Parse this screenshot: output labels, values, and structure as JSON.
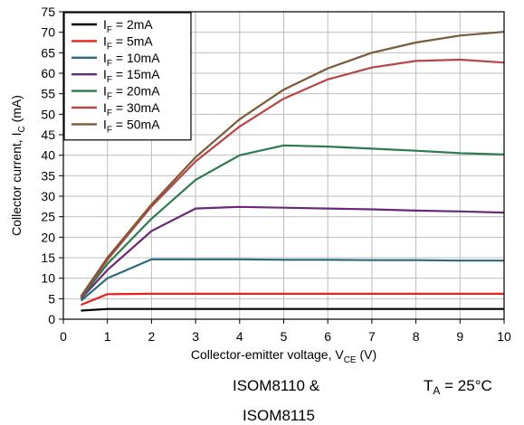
{
  "chart_data": {
    "type": "line",
    "xlabel": {
      "text": "Collector-emitter voltage, V",
      "sub": "CE",
      "suffix": " (V)"
    },
    "ylabel": {
      "text": "Collector current, I",
      "sub": "C",
      "suffix": " (mA)"
    },
    "xlim": [
      0,
      10
    ],
    "ylim": [
      0,
      75
    ],
    "x_ticks": [
      0,
      1,
      2,
      3,
      4,
      5,
      6,
      7,
      8,
      9,
      10
    ],
    "y_ticks": [
      0,
      5,
      10,
      15,
      20,
      25,
      30,
      35,
      40,
      45,
      50,
      55,
      60,
      65,
      70,
      75
    ],
    "grid": true,
    "legend_position": "top-left",
    "x": [
      0.4,
      1,
      2,
      3,
      4,
      5,
      6,
      7,
      8,
      9,
      10
    ],
    "series": [
      {
        "name": "I",
        "sub": "F",
        "label_suffix": " = 2mA",
        "color": "#000000",
        "values": [
          2.1,
          2.5,
          2.5,
          2.5,
          2.5,
          2.5,
          2.5,
          2.5,
          2.5,
          2.5,
          2.5
        ]
      },
      {
        "name": "I",
        "sub": "F",
        "label_suffix": " = 5mA",
        "color": "#e8211d",
        "values": [
          3.5,
          6.1,
          6.2,
          6.2,
          6.2,
          6.2,
          6.2,
          6.2,
          6.2,
          6.2,
          6.2
        ]
      },
      {
        "name": "I",
        "sub": "F",
        "label_suffix": " = 10mA",
        "color": "#2b6a7a",
        "values": [
          4.5,
          10.0,
          14.6,
          14.6,
          14.6,
          14.5,
          14.5,
          14.4,
          14.4,
          14.3,
          14.3
        ]
      },
      {
        "name": "I",
        "sub": "F",
        "label_suffix": " = 15mA",
        "color": "#6a2a7a",
        "values": [
          5.0,
          12.0,
          21.5,
          27.0,
          27.4,
          27.2,
          27.0,
          26.8,
          26.5,
          26.3,
          26.0
        ]
      },
      {
        "name": "I",
        "sub": "F",
        "label_suffix": " = 20mA",
        "color": "#2e7a4e",
        "values": [
          5.2,
          13.5,
          24.5,
          34.0,
          40.0,
          42.4,
          42.1,
          41.6,
          41.1,
          40.5,
          40.2
        ]
      },
      {
        "name": "I",
        "sub": "F",
        "label_suffix": " = 30mA",
        "color": "#b84545",
        "values": [
          5.4,
          14.5,
          27.5,
          38.5,
          47.0,
          53.8,
          58.5,
          61.4,
          63.0,
          63.3,
          62.6
        ]
      },
      {
        "name": "I",
        "sub": "F",
        "label_suffix": " = 50mA",
        "color": "#7a5a38",
        "values": [
          5.6,
          15.0,
          28.0,
          39.5,
          48.8,
          56.0,
          61.2,
          65.0,
          67.5,
          69.2,
          70.1
        ]
      }
    ]
  },
  "notes": {
    "device_1": "ISOM8110 &",
    "device_2": "ISOM8115",
    "temp_prefix": "T",
    "temp_sub": "A",
    "temp_suffix": " = 25°C"
  }
}
